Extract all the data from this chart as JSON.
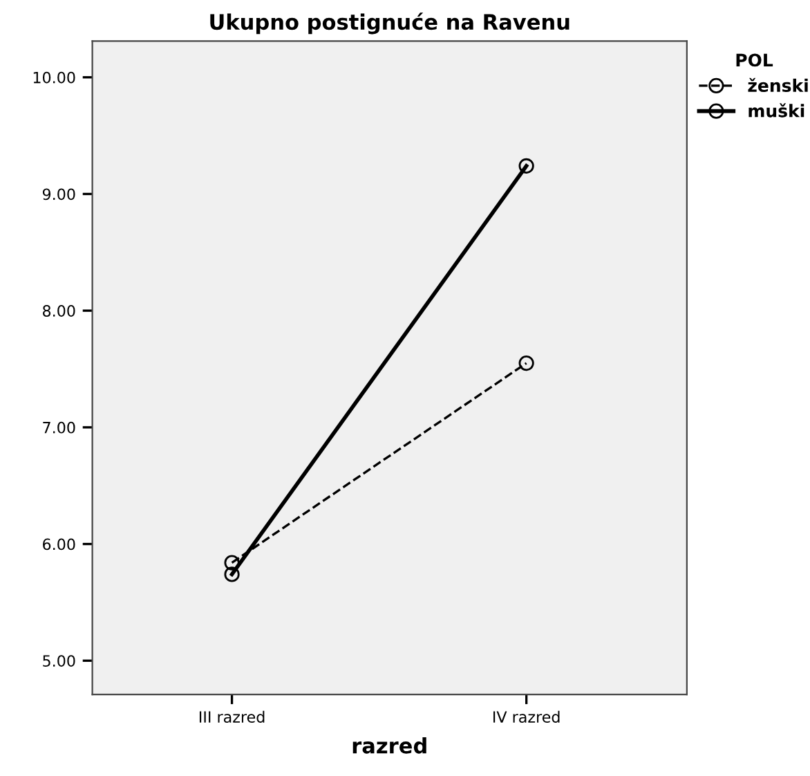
{
  "chart_data": {
    "type": "line",
    "title": "Ukupno postignuće na Ravenu",
    "xlabel": "razred",
    "legend_title": "POL",
    "categories": [
      "III razred",
      "IV razred"
    ],
    "series": [
      {
        "name": "ženski",
        "color": "#000000",
        "line_style": "dashed",
        "values": [
          5.84,
          7.55
        ]
      },
      {
        "name": "muški",
        "color": "#000000",
        "line_style": "solid",
        "values": [
          5.74,
          9.24
        ]
      }
    ],
    "ylim": [
      4.71,
      10.31
    ],
    "yticks": [
      {
        "value": 5,
        "label": "5.00"
      },
      {
        "value": 6,
        "label": "6.00"
      },
      {
        "value": 7,
        "label": "7.00"
      },
      {
        "value": 8,
        "label": "8.00"
      },
      {
        "value": 9,
        "label": "9.00"
      },
      {
        "value": 10,
        "label": "10.00"
      }
    ],
    "marker": "circle",
    "grid": false,
    "legend": "top right"
  }
}
